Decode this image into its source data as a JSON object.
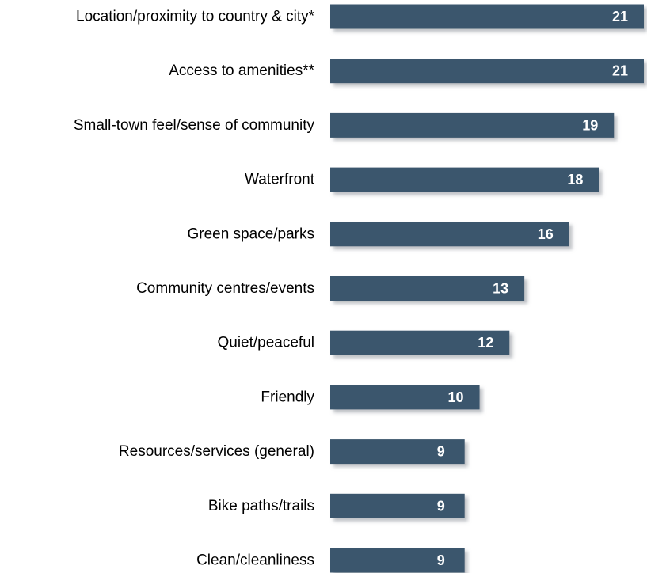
{
  "chart_data": {
    "type": "bar",
    "orientation": "horizontal",
    "categories": [
      "Location/proximity to country & city*",
      "Access to amenities**",
      "Small-town feel/sense of community",
      "Waterfront",
      "Green space/parks",
      "Community centres/events",
      "Quiet/peaceful",
      "Friendly",
      "Resources/services (general)",
      "Bike paths/trails",
      "Clean/cleanliness"
    ],
    "values": [
      21,
      21,
      19,
      18,
      16,
      13,
      12,
      10,
      9,
      9,
      9
    ],
    "title": "",
    "xlabel": "",
    "ylabel": "",
    "xlim": [
      0,
      21
    ],
    "grid": false,
    "legend": "none",
    "colors": {
      "bar": "#3a566d",
      "bar_shadow": "#b7bcc2",
      "value_text": "#ffffff",
      "label_text": "#000000"
    }
  }
}
